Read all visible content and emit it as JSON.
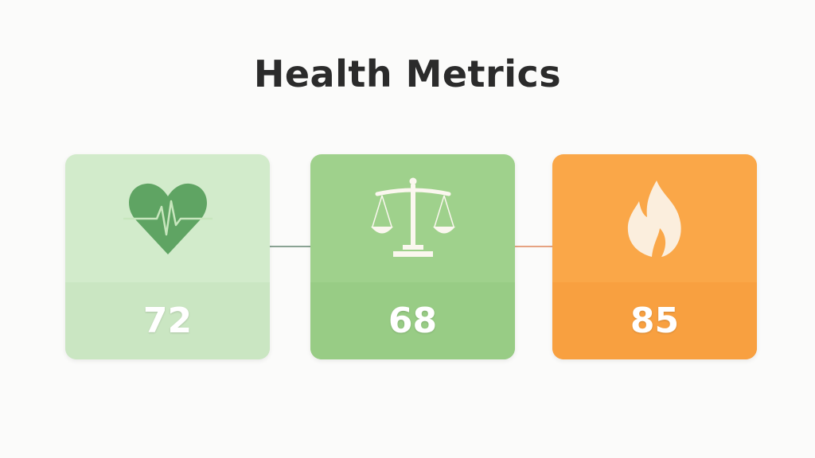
{
  "title": "Health Metrics",
  "cards": [
    {
      "icon": "heart-pulse-icon",
      "value": "72",
      "color": "#d2ebcb"
    },
    {
      "icon": "balance-scale-icon",
      "value": "68",
      "color": "#9fd18c"
    },
    {
      "icon": "flame-icon",
      "value": "85",
      "color": "#faa748"
    }
  ]
}
